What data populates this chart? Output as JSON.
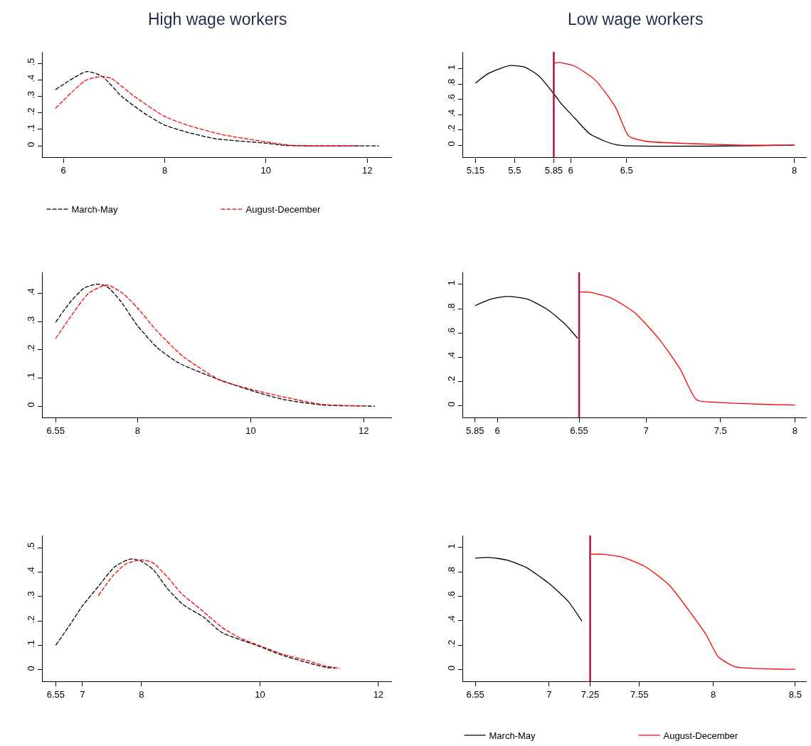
{
  "chart_data": [
    {
      "type": "line",
      "title": "High wage workers",
      "line_style": "dashed",
      "legend": "bottom",
      "xlim": [
        5.59,
        12.49
      ],
      "xticks": [
        6,
        8,
        10,
        12
      ],
      "ylim": [
        -0.07,
        0.57
      ],
      "yticks": [
        0,
        {
          "value": 0.1,
          "label": ".1"
        },
        {
          "value": 0.2,
          "label": ".2"
        },
        {
          "value": 0.3,
          "label": ".3"
        },
        {
          "value": 0.4,
          "label": ".4"
        },
        {
          "value": 0.5,
          "label": ".5"
        }
      ],
      "series": [
        {
          "name": "March-May",
          "color": "#000000",
          "x": [
            5.84,
            6.46,
            6.77,
            7.15,
            7.61,
            7.99,
            8.43,
            8.99,
            10.01,
            10.37,
            12.23
          ],
          "values": [
            0.34,
            0.45,
            0.42,
            0.3,
            0.195,
            0.127,
            0.084,
            0.044,
            0.016,
            0.003,
            0
          ]
        },
        {
          "name": "August-December",
          "color": "#ff0000",
          "x": [
            5.84,
            6.43,
            6.74,
            6.94,
            7.4,
            7.99,
            8.43,
            9.14,
            10.01,
            10.52,
            11.69,
            11.85
          ],
          "values": [
            0.226,
            0.395,
            0.42,
            0.41,
            0.3,
            0.18,
            0.127,
            0.068,
            0.024,
            0.003,
            0,
            0
          ]
        }
      ]
    },
    {
      "type": "line",
      "title": "Low wage workers",
      "line_style": "solid",
      "xlim": [
        5.04,
        8.11
      ],
      "xticks": [
        5.15,
        5.5,
        5.85,
        6,
        6.5,
        8
      ],
      "ylim": [
        -0.16,
        1.22
      ],
      "yticks": [
        0,
        {
          "value": 0.2,
          "label": ".2"
        },
        {
          "value": 0.4,
          "label": ".4"
        },
        {
          "value": 0.6,
          "label": ".6"
        },
        {
          "value": 0.8,
          "label": ".8"
        },
        1
      ],
      "ref_lines": [
        {
          "axis": "x",
          "value": 5.85,
          "color": "#b0123e"
        }
      ],
      "series": [
        {
          "color": "#000000",
          "x": [
            5.15,
            5.27,
            5.46,
            5.59,
            5.72,
            5.85,
            5.93,
            6.04,
            6.17,
            6.31,
            6.43,
            8.0
          ],
          "values": [
            0.81,
            0.94,
            1.04,
            1.02,
            0.9,
            0.67,
            0.52,
            0.35,
            0.15,
            0.05,
            0,
            0
          ]
        },
        {
          "color": "#ff0000",
          "x": [
            5.85,
            5.9,
            6.04,
            6.22,
            6.4,
            6.52,
            6.68,
            7.09,
            7.54,
            8.0
          ],
          "values": [
            1.07,
            1.08,
            1.03,
            0.85,
            0.5,
            0.12,
            0.05,
            0.02,
            0.0,
            0
          ]
        }
      ]
    },
    {
      "type": "line",
      "line_style": "dashed",
      "xlim": [
        6.32,
        12.5
      ],
      "xticks": [
        6.55,
        8,
        10,
        12
      ],
      "ylim": [
        -0.041,
        0.475
      ],
      "yticks": [
        0,
        {
          "value": 0.1,
          "label": ".1"
        },
        {
          "value": 0.2,
          "label": ".2"
        },
        {
          "value": 0.3,
          "label": ".3"
        },
        {
          "value": 0.4,
          "label": ".4"
        }
      ],
      "series": [
        {
          "color": "#000000",
          "x": [
            6.55,
            6.81,
            7.06,
            7.29,
            7.46,
            7.69,
            8,
            8.34,
            8.71,
            9.36,
            10,
            10.57,
            11.27,
            12.2
          ],
          "values": [
            0.298,
            0.37,
            0.42,
            0.433,
            0.424,
            0.375,
            0.285,
            0.209,
            0.155,
            0.1,
            0.056,
            0.024,
            0.004,
            0
          ]
        },
        {
          "color": "#ff0000",
          "x": [
            6.55,
            6.81,
            7.13,
            7.46,
            7.74,
            8,
            8.34,
            8.8,
            9.46,
            10,
            10.57,
            11.27,
            12.01
          ],
          "values": [
            0.24,
            0.316,
            0.4,
            0.43,
            0.4,
            0.348,
            0.267,
            0.177,
            0.092,
            0.06,
            0.033,
            0.006,
            0.001
          ]
        }
      ]
    },
    {
      "type": "line",
      "line_style": "solid",
      "xlim": [
        5.77,
        8.08
      ],
      "xticks": [
        5.85,
        6,
        6.55,
        7,
        7.5,
        8
      ],
      "ylim": [
        -0.1,
        1.1
      ],
      "yticks": [
        0,
        {
          "value": 0.2,
          "label": ".2"
        },
        {
          "value": 0.4,
          "label": ".4"
        },
        {
          "value": 0.6,
          "label": ".6"
        },
        {
          "value": 0.8,
          "label": ".8"
        },
        1
      ],
      "ref_lines": [
        {
          "axis": "x",
          "value": 6.55,
          "color": "#b0123e"
        }
      ],
      "series": [
        {
          "color": "#000000",
          "x": [
            5.85,
            5.96,
            6.07,
            6.2,
            6.34,
            6.46,
            6.54
          ],
          "values": [
            0.825,
            0.88,
            0.9,
            0.88,
            0.79,
            0.667,
            0.555
          ]
        },
        {
          "color": "#ff0000",
          "x": [
            6.555,
            6.61,
            6.76,
            6.92,
            7.09,
            7.23,
            7.34,
            7.49,
            7.74,
            8.0
          ],
          "values": [
            0.937,
            0.937,
            0.89,
            0.77,
            0.545,
            0.3,
            0.047,
            0.026,
            0.012,
            0.004
          ]
        }
      ]
    },
    {
      "type": "line",
      "line_style": "dashed",
      "xlim": [
        6.33,
        12.23
      ],
      "xticks": [
        6.55,
        7,
        8,
        10,
        12
      ],
      "ylim": [
        -0.048,
        0.55
      ],
      "yticks": [
        0,
        {
          "value": 0.1,
          "label": ".1"
        },
        {
          "value": 0.2,
          "label": ".2"
        },
        {
          "value": 0.3,
          "label": ".3"
        },
        {
          "value": 0.4,
          "label": ".4"
        },
        {
          "value": 0.5,
          "label": ".5"
        }
      ],
      "series": [
        {
          "color": "#000000",
          "x": [
            6.55,
            6.79,
            7,
            7.28,
            7.55,
            7.81,
            7.99,
            8.21,
            8.43,
            8.7,
            9.05,
            9.36,
            10,
            10.38,
            10.82,
            11.13,
            11.27
          ],
          "values": [
            0.1,
            0.184,
            0.261,
            0.344,
            0.422,
            0.453,
            0.445,
            0.407,
            0.334,
            0.267,
            0.215,
            0.152,
            0.095,
            0.059,
            0.028,
            0.009,
            0.007
          ]
        },
        {
          "color": "#ff0000",
          "x": [
            7.27,
            7.52,
            7.74,
            7.99,
            8.19,
            8.45,
            8.67,
            8.98,
            9.38,
            9.69,
            10,
            10.38,
            10.82,
            11.09,
            11.35
          ],
          "values": [
            0.303,
            0.386,
            0.433,
            0.45,
            0.438,
            0.376,
            0.313,
            0.251,
            0.17,
            0.127,
            0.098,
            0.064,
            0.036,
            0.016,
            0.006
          ]
        }
      ]
    },
    {
      "type": "line",
      "line_style": "solid",
      "legend": "bottom",
      "xlim": [
        6.476,
        8.57
      ],
      "xticks": [
        6.55,
        7,
        7.25,
        7.55,
        8,
        8.5
      ],
      "ylim": [
        -0.098,
        1.1
      ],
      "yticks": [
        0,
        {
          "value": 0.2,
          "label": ".2"
        },
        {
          "value": 0.4,
          "label": ".4"
        },
        {
          "value": 0.6,
          "label": ".6"
        },
        {
          "value": 0.8,
          "label": ".8"
        },
        1
      ],
      "ref_lines": [
        {
          "axis": "x",
          "value": 7.25,
          "color": "#b0123e"
        }
      ],
      "series": [
        {
          "name": "March-May",
          "color": "#000000",
          "x": [
            6.55,
            6.63,
            6.74,
            6.86,
            7,
            7.12,
            7.2
          ],
          "values": [
            0.913,
            0.919,
            0.898,
            0.837,
            0.705,
            0.553,
            0.396
          ]
        },
        {
          "name": "August-December",
          "color": "#ff0000",
          "x": [
            7.255,
            7.33,
            7.45,
            7.58,
            7.73,
            7.87,
            7.96,
            8.03,
            8.13,
            8.27,
            8.5
          ],
          "values": [
            0.945,
            0.945,
            0.919,
            0.848,
            0.695,
            0.451,
            0.278,
            0.106,
            0.024,
            0.008,
            0.002
          ]
        }
      ]
    }
  ]
}
